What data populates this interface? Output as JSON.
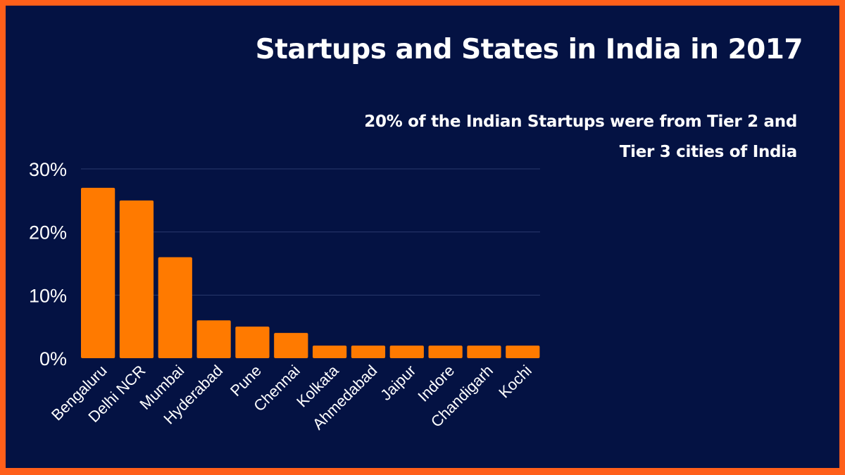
{
  "chart_data": {
    "type": "bar",
    "title": "Startups and States in India in 2017",
    "subtitle_lines": [
      "20% of the Indian Startups were from Tier 2 and",
      "Tier 3 cities of India"
    ],
    "categories": [
      "Bengaluru",
      "Delhi NCR",
      "Mumbai",
      "Hyderabad",
      "Pune",
      "Chennai",
      "Kolkata",
      "Ahmedabad",
      "Jaipur",
      "Indore",
      "Chandigarh",
      "Kochi"
    ],
    "values": [
      27,
      25,
      16,
      6,
      5,
      4,
      2,
      2,
      2,
      2,
      2,
      2
    ],
    "yticks": [
      0,
      10,
      20,
      30
    ],
    "ytick_labels": [
      "0%",
      "10%",
      "20%",
      "30%"
    ],
    "ylim": [
      0,
      30
    ],
    "xlabel": "",
    "ylabel": "",
    "grid": true,
    "colors": {
      "bar": "#ff7a00",
      "background": "#041243",
      "border": "#ff5f1a",
      "grid": "#2a3a6e"
    }
  }
}
